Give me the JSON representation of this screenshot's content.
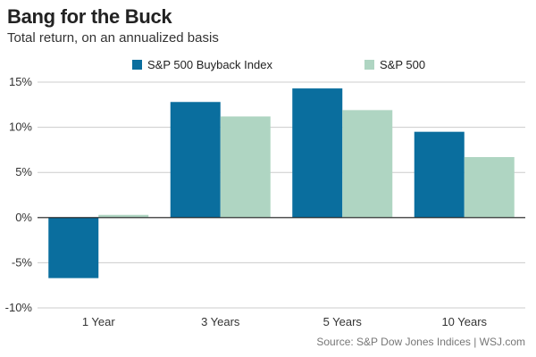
{
  "header": {
    "title": "Bang for the Buck",
    "subtitle": "Total return, on an annualized basis"
  },
  "footer": {
    "source": "Source: S&P Dow Jones Indices  |  WSJ.com"
  },
  "chart_data": {
    "type": "bar",
    "title": "Bang for the Buck",
    "subtitle": "Total return, on an annualized basis",
    "xlabel": "",
    "ylabel": "",
    "categories": [
      "1 Year",
      "3 Years",
      "5 Years",
      "10 Years"
    ],
    "series": [
      {
        "name": "S&P 500 Buyback Index",
        "color": "#0a6e9e",
        "values": [
          -6.7,
          12.8,
          14.3,
          9.5
        ]
      },
      {
        "name": "S&P 500",
        "color": "#afd5c2",
        "values": [
          0.3,
          11.2,
          11.9,
          6.7
        ]
      }
    ],
    "ylim": [
      -10,
      15
    ],
    "yticks": [
      15,
      10,
      5,
      0,
      -5,
      -10
    ],
    "ytick_labels": [
      "15%",
      "10%",
      "5%",
      "0%",
      "-5%",
      "-10%"
    ],
    "grid": true,
    "legend_position": "top"
  }
}
